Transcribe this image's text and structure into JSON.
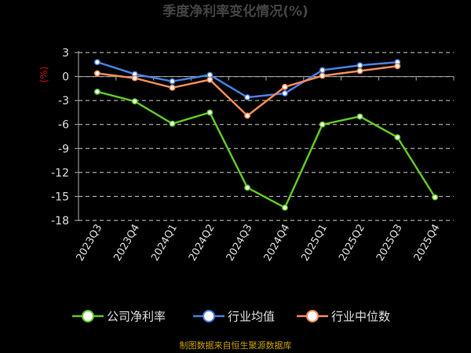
{
  "chart_data": {
    "type": "line",
    "title": "季度净利率变化情况(%)",
    "unit_label": "(%)",
    "categories": [
      "2023Q3",
      "2023Q4",
      "2024Q1",
      "2024Q2",
      "2024Q3",
      "2024Q4",
      "2025Q1",
      "2025Q2",
      "2025Q3",
      "2025Q4"
    ],
    "y_ticks": [
      3,
      0,
      -3,
      -6,
      -9,
      -12,
      -15,
      -18
    ],
    "ylim": [
      -18,
      3
    ],
    "grid": "horizontal dashed",
    "legend_position": "bottom",
    "series": [
      {
        "name": "公司净利率",
        "color": "#5fc726",
        "values": [
          -1.9,
          -3.1,
          -5.9,
          -4.5,
          -13.9,
          -16.4,
          -6.0,
          -5.0,
          -7.6,
          -15.1
        ]
      },
      {
        "name": "行业均值",
        "color": "#4a7fe0",
        "values": [
          1.8,
          0.3,
          -0.6,
          0.2,
          -2.6,
          -2.1,
          0.8,
          1.4,
          1.8,
          null
        ]
      },
      {
        "name": "行业中位数",
        "color": "#f68c5a",
        "values": [
          0.4,
          -0.2,
          -1.4,
          -0.4,
          -4.9,
          -1.3,
          0.1,
          0.7,
          1.3,
          null
        ]
      }
    ],
    "source": "制图数据来自恒生聚源数据库"
  }
}
